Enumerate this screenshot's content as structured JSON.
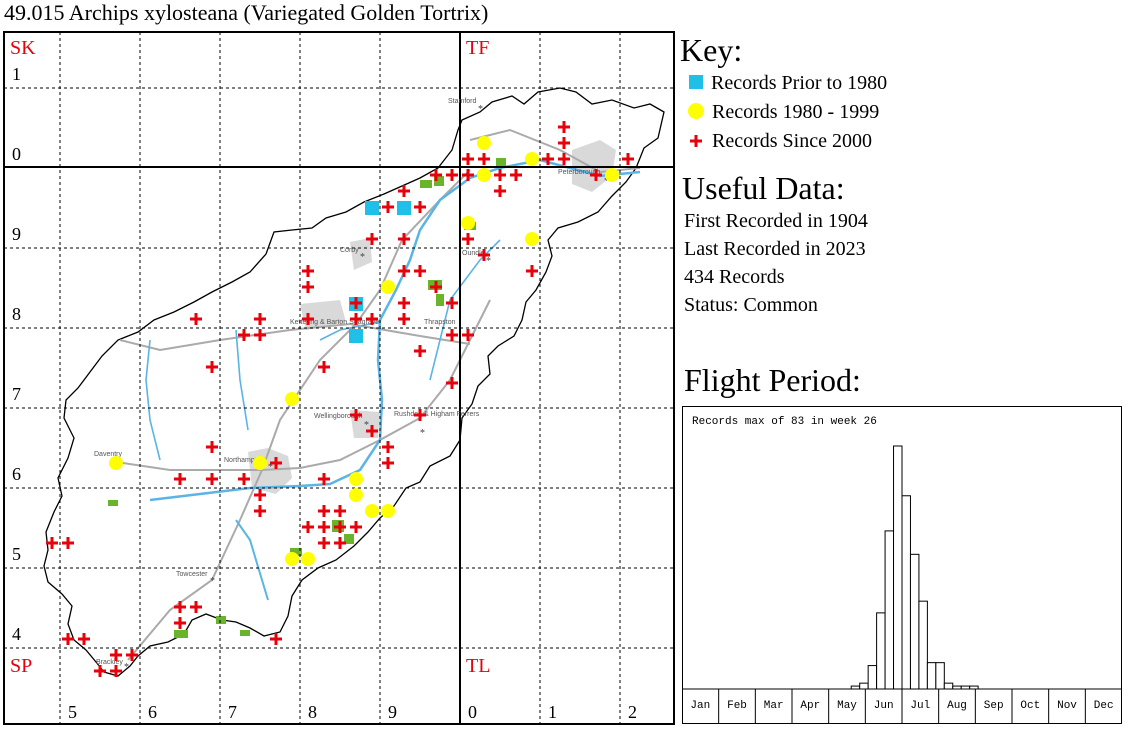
{
  "title": "49.015 Archips xylosteana (Variegated Golden Tortrix)",
  "map": {
    "square_labels": [
      "SK",
      "TF",
      "SP",
      "TL"
    ],
    "easting_labels": [
      "5",
      "6",
      "7",
      "8",
      "9",
      "0",
      "1",
      "2"
    ],
    "northing_labels": [
      "1",
      "0",
      "9",
      "8",
      "7",
      "6",
      "5",
      "4"
    ],
    "towns": [
      "Stamford",
      "Peterborough",
      "Corby",
      "Oundle",
      "Kettering & Barton Seagrave",
      "Thrapston",
      "Wellingborough",
      "Rushden & Higham Ferrers",
      "Daventry",
      "Northampton",
      "Towcester",
      "Brackley"
    ],
    "colors": {
      "prior_1980": "#1ec0e8",
      "r1980_1999": "#ffff00",
      "since_2000": "#e8000b",
      "grid_label": "#e8000b"
    }
  },
  "key": {
    "heading": "Key:",
    "items": [
      {
        "label": "Records Prior to 1980",
        "symbol": "square",
        "color": "#1ec0e8"
      },
      {
        "label": "Records 1980 - 1999",
        "symbol": "circle",
        "color": "#ffff00"
      },
      {
        "label": "Records Since 2000",
        "symbol": "cross",
        "color": "#e8000b"
      }
    ]
  },
  "useful": {
    "heading": "Useful Data:",
    "first": "First Recorded in 1904",
    "last": "Last Recorded in 2023",
    "records": "434 Records",
    "status": "Status: Common"
  },
  "flight": {
    "heading": "Flight Period:",
    "note": "Records max of 83 in week 26"
  },
  "chart_data": {
    "type": "bar",
    "title": "Records max of 83 in week 26",
    "months": [
      "Jan",
      "Feb",
      "Mar",
      "Apr",
      "May",
      "Jun",
      "Jul",
      "Aug",
      "Sep",
      "Oct",
      "Nov",
      "Dec"
    ],
    "x": [
      21,
      22,
      23,
      24,
      25,
      26,
      27,
      28,
      29,
      30,
      31,
      32,
      33,
      34,
      35
    ],
    "values": [
      1,
      2,
      8,
      26,
      54,
      83,
      66,
      46,
      30,
      9,
      9,
      2,
      1,
      1,
      1
    ],
    "xlabel": "",
    "ylabel": "",
    "ylim": [
      0,
      83
    ]
  }
}
